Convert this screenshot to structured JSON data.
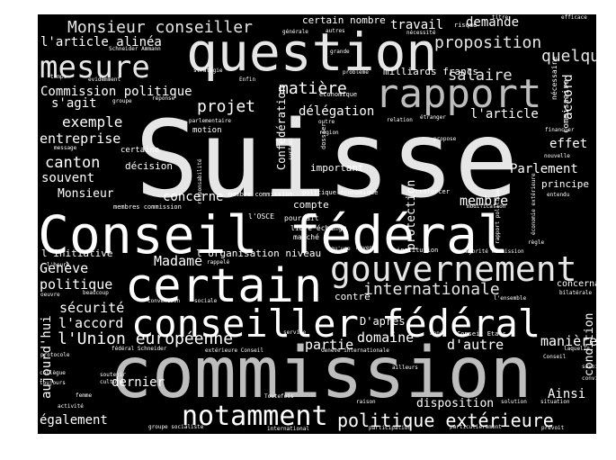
{
  "wordcloud": {
    "background": "#000000",
    "colors": {
      "white": "#ffffff",
      "light": "#e6e6e6",
      "grey": "#bdbdbd",
      "dark": "#9a9a9a"
    },
    "words": [
      {
        "text": "Suisse",
        "tone": "light"
      },
      {
        "text": "commission",
        "tone": "grey"
      },
      {
        "text": "Conseil fédéral",
        "tone": "white"
      },
      {
        "text": "question",
        "tone": "light"
      },
      {
        "text": "certain",
        "tone": "white"
      },
      {
        "text": "conseiller fédéral",
        "tone": "white"
      },
      {
        "text": "gouvernement",
        "tone": "light"
      },
      {
        "text": "rapport",
        "tone": "grey"
      },
      {
        "text": "mesure",
        "tone": "light"
      },
      {
        "text": "notamment",
        "tone": "white"
      },
      {
        "text": "politique extérieure",
        "tone": "white"
      },
      {
        "text": "Monsieur conseiller",
        "tone": "light"
      },
      {
        "text": "proposition",
        "tone": "light"
      },
      {
        "text": "internationale",
        "tone": "light"
      },
      {
        "text": "l'Union européenne",
        "tone": "white"
      },
      {
        "text": "salaire",
        "tone": "light"
      },
      {
        "text": "quelque",
        "tone": "light"
      },
      {
        "text": "matière",
        "tone": "white"
      },
      {
        "text": "projet",
        "tone": "white"
      },
      {
        "text": "exemple",
        "tone": "white"
      },
      {
        "text": "Parlement",
        "tone": "white"
      },
      {
        "text": "canton",
        "tone": "white"
      },
      {
        "text": "entreprise",
        "tone": "white"
      },
      {
        "text": "Madame",
        "tone": "white"
      },
      {
        "text": "Genève",
        "tone": "white"
      },
      {
        "text": "politique",
        "tone": "white"
      },
      {
        "text": "sécurité",
        "tone": "white"
      },
      {
        "text": "l'accord",
        "tone": "white"
      },
      {
        "text": "partie",
        "tone": "white"
      },
      {
        "text": "domaine",
        "tone": "white"
      },
      {
        "text": "d'autre",
        "tone": "white"
      },
      {
        "text": "manière",
        "tone": "white"
      },
      {
        "text": "membre",
        "tone": "white"
      },
      {
        "text": "Ainsi",
        "tone": "white"
      },
      {
        "text": "dernier",
        "tone": "white"
      },
      {
        "text": "également",
        "tone": "white"
      },
      {
        "text": "l'article alinéa",
        "tone": "white"
      },
      {
        "text": "Commission politique",
        "tone": "white"
      },
      {
        "text": "s'agit",
        "tone": "white"
      },
      {
        "text": "délégation",
        "tone": "white"
      },
      {
        "text": "l'article",
        "tone": "white"
      },
      {
        "text": "effet",
        "tone": "white"
      },
      {
        "text": "travail",
        "tone": "white"
      },
      {
        "text": "demande",
        "tone": "white"
      },
      {
        "text": "concerne",
        "tone": "white"
      },
      {
        "text": "souvent",
        "tone": "white"
      },
      {
        "text": "Monsieur",
        "tone": "white"
      },
      {
        "text": "décision",
        "tone": "white"
      },
      {
        "text": "important",
        "tone": "white"
      },
      {
        "text": "compte",
        "tone": "white"
      },
      {
        "text": "principe",
        "tone": "white"
      },
      {
        "text": "milliards francs",
        "tone": "white"
      },
      {
        "text": "certain nombre",
        "tone": "white"
      },
      {
        "text": "aujourd'hui",
        "tone": "white"
      },
      {
        "text": "protection",
        "tone": "white"
      },
      {
        "text": "Confédération",
        "tone": "white"
      },
      {
        "text": "accord",
        "tone": "white"
      },
      {
        "text": "condition",
        "tone": "white"
      },
      {
        "text": "D'après",
        "tone": "white"
      },
      {
        "text": "disposition",
        "tone": "white"
      },
      {
        "text": "l'initiative",
        "tone": "white"
      },
      {
        "text": "l'organisation niveau",
        "tone": "white"
      },
      {
        "text": "contre",
        "tone": "white"
      },
      {
        "text": "concernant",
        "tone": "white"
      },
      {
        "text": "libre échange",
        "tone": "white"
      },
      {
        "text": "marché",
        "tone": "white"
      },
      {
        "text": "pourrait",
        "tone": "white"
      },
      {
        "text": "l'OSCE",
        "tone": "white"
      },
      {
        "text": "motion",
        "tone": "white"
      },
      {
        "text": "certaine",
        "tone": "white"
      },
      {
        "text": "commissaire",
        "tone": "white"
      },
      {
        "text": "nécessaire",
        "tone": "white"
      },
      {
        "text": "économique",
        "tone": "white"
      },
      {
        "text": "membres commission",
        "tone": "white"
      },
      {
        "text": "membre commission",
        "tone": "white"
      },
      {
        "text": "politique économique",
        "tone": "white"
      },
      {
        "text": "renforcer",
        "tone": "white"
      },
      {
        "text": "modification",
        "tone": "white"
      },
      {
        "text": "entendu",
        "tone": "white"
      },
      {
        "text": "nouvelle",
        "tone": "white"
      },
      {
        "text": "financier",
        "tone": "white"
      },
      {
        "text": "propose",
        "tone": "white"
      },
      {
        "text": "étranger",
        "tone": "white"
      },
      {
        "text": "relation",
        "tone": "white"
      },
      {
        "text": "région",
        "tone": "white"
      },
      {
        "text": "outre",
        "tone": "white"
      },
      {
        "text": "dossier",
        "tone": "white"
      },
      {
        "text": "surtout",
        "tone": "white"
      },
      {
        "text": "responsabilité",
        "tone": "white"
      },
      {
        "text": "parlementaire",
        "tone": "white"
      },
      {
        "text": "stratégie",
        "tone": "white"
      },
      {
        "text": "problème",
        "tone": "white"
      },
      {
        "text": "évidemment",
        "tone": "white"
      },
      {
        "text": "Enfin",
        "tone": "white"
      },
      {
        "text": "temps",
        "tone": "white"
      },
      {
        "text": "groupe",
        "tone": "white"
      },
      {
        "text": "réponse",
        "tone": "white"
      },
      {
        "text": "message",
        "tone": "white"
      },
      {
        "text": "Schneider Ammann",
        "tone": "white"
      },
      {
        "text": "grande",
        "tone": "white"
      },
      {
        "text": "générale",
        "tone": "white"
      },
      {
        "text": "autres",
        "tone": "white"
      },
      {
        "text": "nécessité",
        "tone": "white"
      },
      {
        "text": "risque",
        "tone": "white"
      },
      {
        "text": "titre",
        "tone": "white"
      },
      {
        "text": "efficace",
        "tone": "white"
      },
      {
        "text": "qu'une",
        "tone": "white"
      },
      {
        "text": "moyen",
        "tone": "white"
      },
      {
        "text": "institution",
        "tone": "white"
      },
      {
        "text": "majorité commission",
        "tone": "white"
      },
      {
        "text": "règle",
        "tone": "white"
      },
      {
        "text": "rappelé",
        "tone": "white"
      },
      {
        "text": "convention",
        "tone": "white"
      },
      {
        "text": "sociale",
        "tone": "white"
      },
      {
        "text": "l'ensemble",
        "tone": "white"
      },
      {
        "text": "bilatérale",
        "tone": "white"
      },
      {
        "text": "l'heure",
        "tone": "white"
      },
      {
        "text": "beaucoup",
        "tone": "white"
      },
      {
        "text": "oeuvre",
        "tone": "white"
      },
      {
        "text": "service",
        "tone": "white"
      },
      {
        "text": "année",
        "tone": "white"
      },
      {
        "text": "Conseil Etats",
        "tone": "white"
      },
      {
        "text": "laquelle",
        "tone": "white"
      },
      {
        "text": "protocole",
        "tone": "white"
      },
      {
        "text": "fédéral Schneider",
        "tone": "white"
      },
      {
        "text": "extérieure Conseil",
        "tone": "white"
      },
      {
        "text": "Genève internationale",
        "tone": "white"
      },
      {
        "text": "Conseil",
        "tone": "white"
      },
      {
        "text": "savoir",
        "tone": "white"
      },
      {
        "text": "ailleurs",
        "tone": "white"
      },
      {
        "text": "collègue",
        "tone": "white"
      },
      {
        "text": "toujours",
        "tone": "white"
      },
      {
        "text": "soutenir",
        "tone": "white"
      },
      {
        "text": "culture",
        "tone": "white"
      },
      {
        "text": "convient",
        "tone": "white"
      },
      {
        "text": "femme",
        "tone": "white"
      },
      {
        "text": "activité",
        "tone": "white"
      },
      {
        "text": "Toutefois",
        "tone": "white"
      },
      {
        "text": "raison",
        "tone": "white"
      },
      {
        "text": "solution",
        "tone": "white"
      },
      {
        "text": "situation",
        "tone": "white"
      },
      {
        "text": "groupe socialiste",
        "tone": "white"
      },
      {
        "text": "international",
        "tone": "white"
      },
      {
        "text": "participation",
        "tone": "white"
      },
      {
        "text": "particulièrement",
        "tone": "white"
      },
      {
        "text": "prévoit",
        "tone": "white"
      },
      {
        "text": "économie extérieure",
        "tone": "white"
      },
      {
        "text": "rapport politique",
        "tone": "white"
      }
    ]
  }
}
